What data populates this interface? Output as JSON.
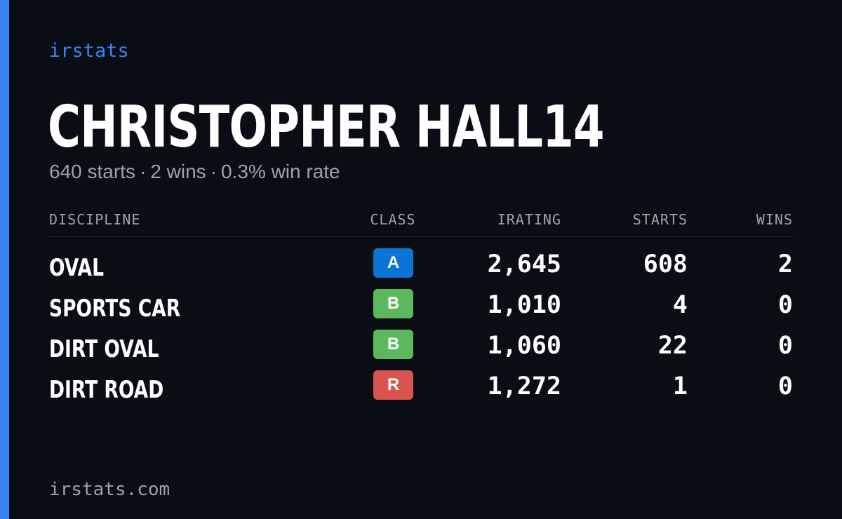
{
  "brand": "irstats",
  "driver": {
    "name": "CHRISTOPHER HALL14",
    "starts_text": "640 starts",
    "wins_text": "2 wins",
    "win_rate_text": "0.3% win rate",
    "separator": "·"
  },
  "table": {
    "headers": {
      "discipline": "DISCIPLINE",
      "class": "CLASS",
      "irating": "IRATING",
      "starts": "STARTS",
      "wins": "WINS"
    },
    "rows": [
      {
        "discipline": "OVAL",
        "class": "A",
        "class_color": "#0b74d4",
        "irating": "2,645",
        "starts": "608",
        "wins": "2"
      },
      {
        "discipline": "SPORTS CAR",
        "class": "B",
        "class_color": "#5cb85c",
        "irating": "1,010",
        "starts": "4",
        "wins": "0"
      },
      {
        "discipline": "DIRT OVAL",
        "class": "B",
        "class_color": "#5cb85c",
        "irating": "1,060",
        "starts": "22",
        "wins": "0"
      },
      {
        "discipline": "DIRT ROAD",
        "class": "R",
        "class_color": "#d9534f",
        "irating": "1,272",
        "starts": "1",
        "wins": "0"
      }
    ]
  },
  "footer": "irstats.com",
  "colors": {
    "accent": "#3b82f6",
    "background": "#0a0d14",
    "muted_text": "#9ca3af"
  }
}
